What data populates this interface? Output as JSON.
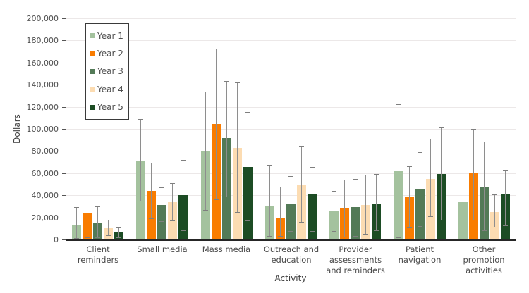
{
  "chart_data": {
    "type": "bar",
    "title": "",
    "xlabel": "Activity",
    "ylabel": "Dollars",
    "grid": true,
    "legend_position": "top-left-inside",
    "y_axis": {
      "min": 0,
      "max": 200000,
      "step": 20000
    },
    "categories": [
      "Client reminders",
      "Small media",
      "Mass media",
      "Outreach and education",
      "Provider assessments and reminders",
      "Patient navigation",
      "Other promotion activities"
    ],
    "series": [
      {
        "name": "Year 1",
        "color": "#a4c29e",
        "values": [
          13500,
          71500,
          80000,
          30500,
          25500,
          61500,
          33500
        ],
        "err_lo": [
          1500,
          35000,
          26500,
          3500,
          7500,
          2000,
          15000
        ],
        "err_hi": [
          29500,
          109000,
          134000,
          67500,
          44000,
          122000,
          52000
        ]
      },
      {
        "name": "Year 2",
        "color": "#f97c00",
        "values": [
          23500,
          44000,
          104500,
          20000,
          28000,
          38000,
          60000
        ],
        "err_lo": [
          2000,
          19000,
          36500,
          3000,
          2500,
          11000,
          18000
        ],
        "err_hi": [
          46000,
          69500,
          172500,
          47500,
          54000,
          66000,
          100000
        ]
      },
      {
        "name": "Year 3",
        "color": "#537a57",
        "values": [
          15500,
          31500,
          92000,
          32000,
          29000,
          45000,
          48000
        ],
        "err_lo": [
          2000,
          16500,
          39000,
          7500,
          3500,
          12000,
          8000
        ],
        "err_hi": [
          30000,
          47000,
          143500,
          57500,
          55000,
          79000,
          88500
        ]
      },
      {
        "name": "Year 4",
        "color": "#fcdcb2",
        "values": [
          10000,
          33500,
          83000,
          50000,
          31000,
          55000,
          25000
        ],
        "err_lo": [
          4000,
          17500,
          25000,
          16000,
          5000,
          21000,
          11500
        ],
        "err_hi": [
          18000,
          51000,
          142000,
          84000,
          58500,
          91000,
          41000
        ]
      },
      {
        "name": "Year 5",
        "color": "#1c4c24",
        "values": [
          6500,
          40000,
          65500,
          41500,
          32500,
          59500,
          41000
        ],
        "err_lo": [
          2000,
          8500,
          17500,
          7500,
          8500,
          18000,
          12500
        ],
        "err_hi": [
          11000,
          72000,
          115000,
          65500,
          59000,
          101000,
          62500
        ]
      }
    ]
  }
}
